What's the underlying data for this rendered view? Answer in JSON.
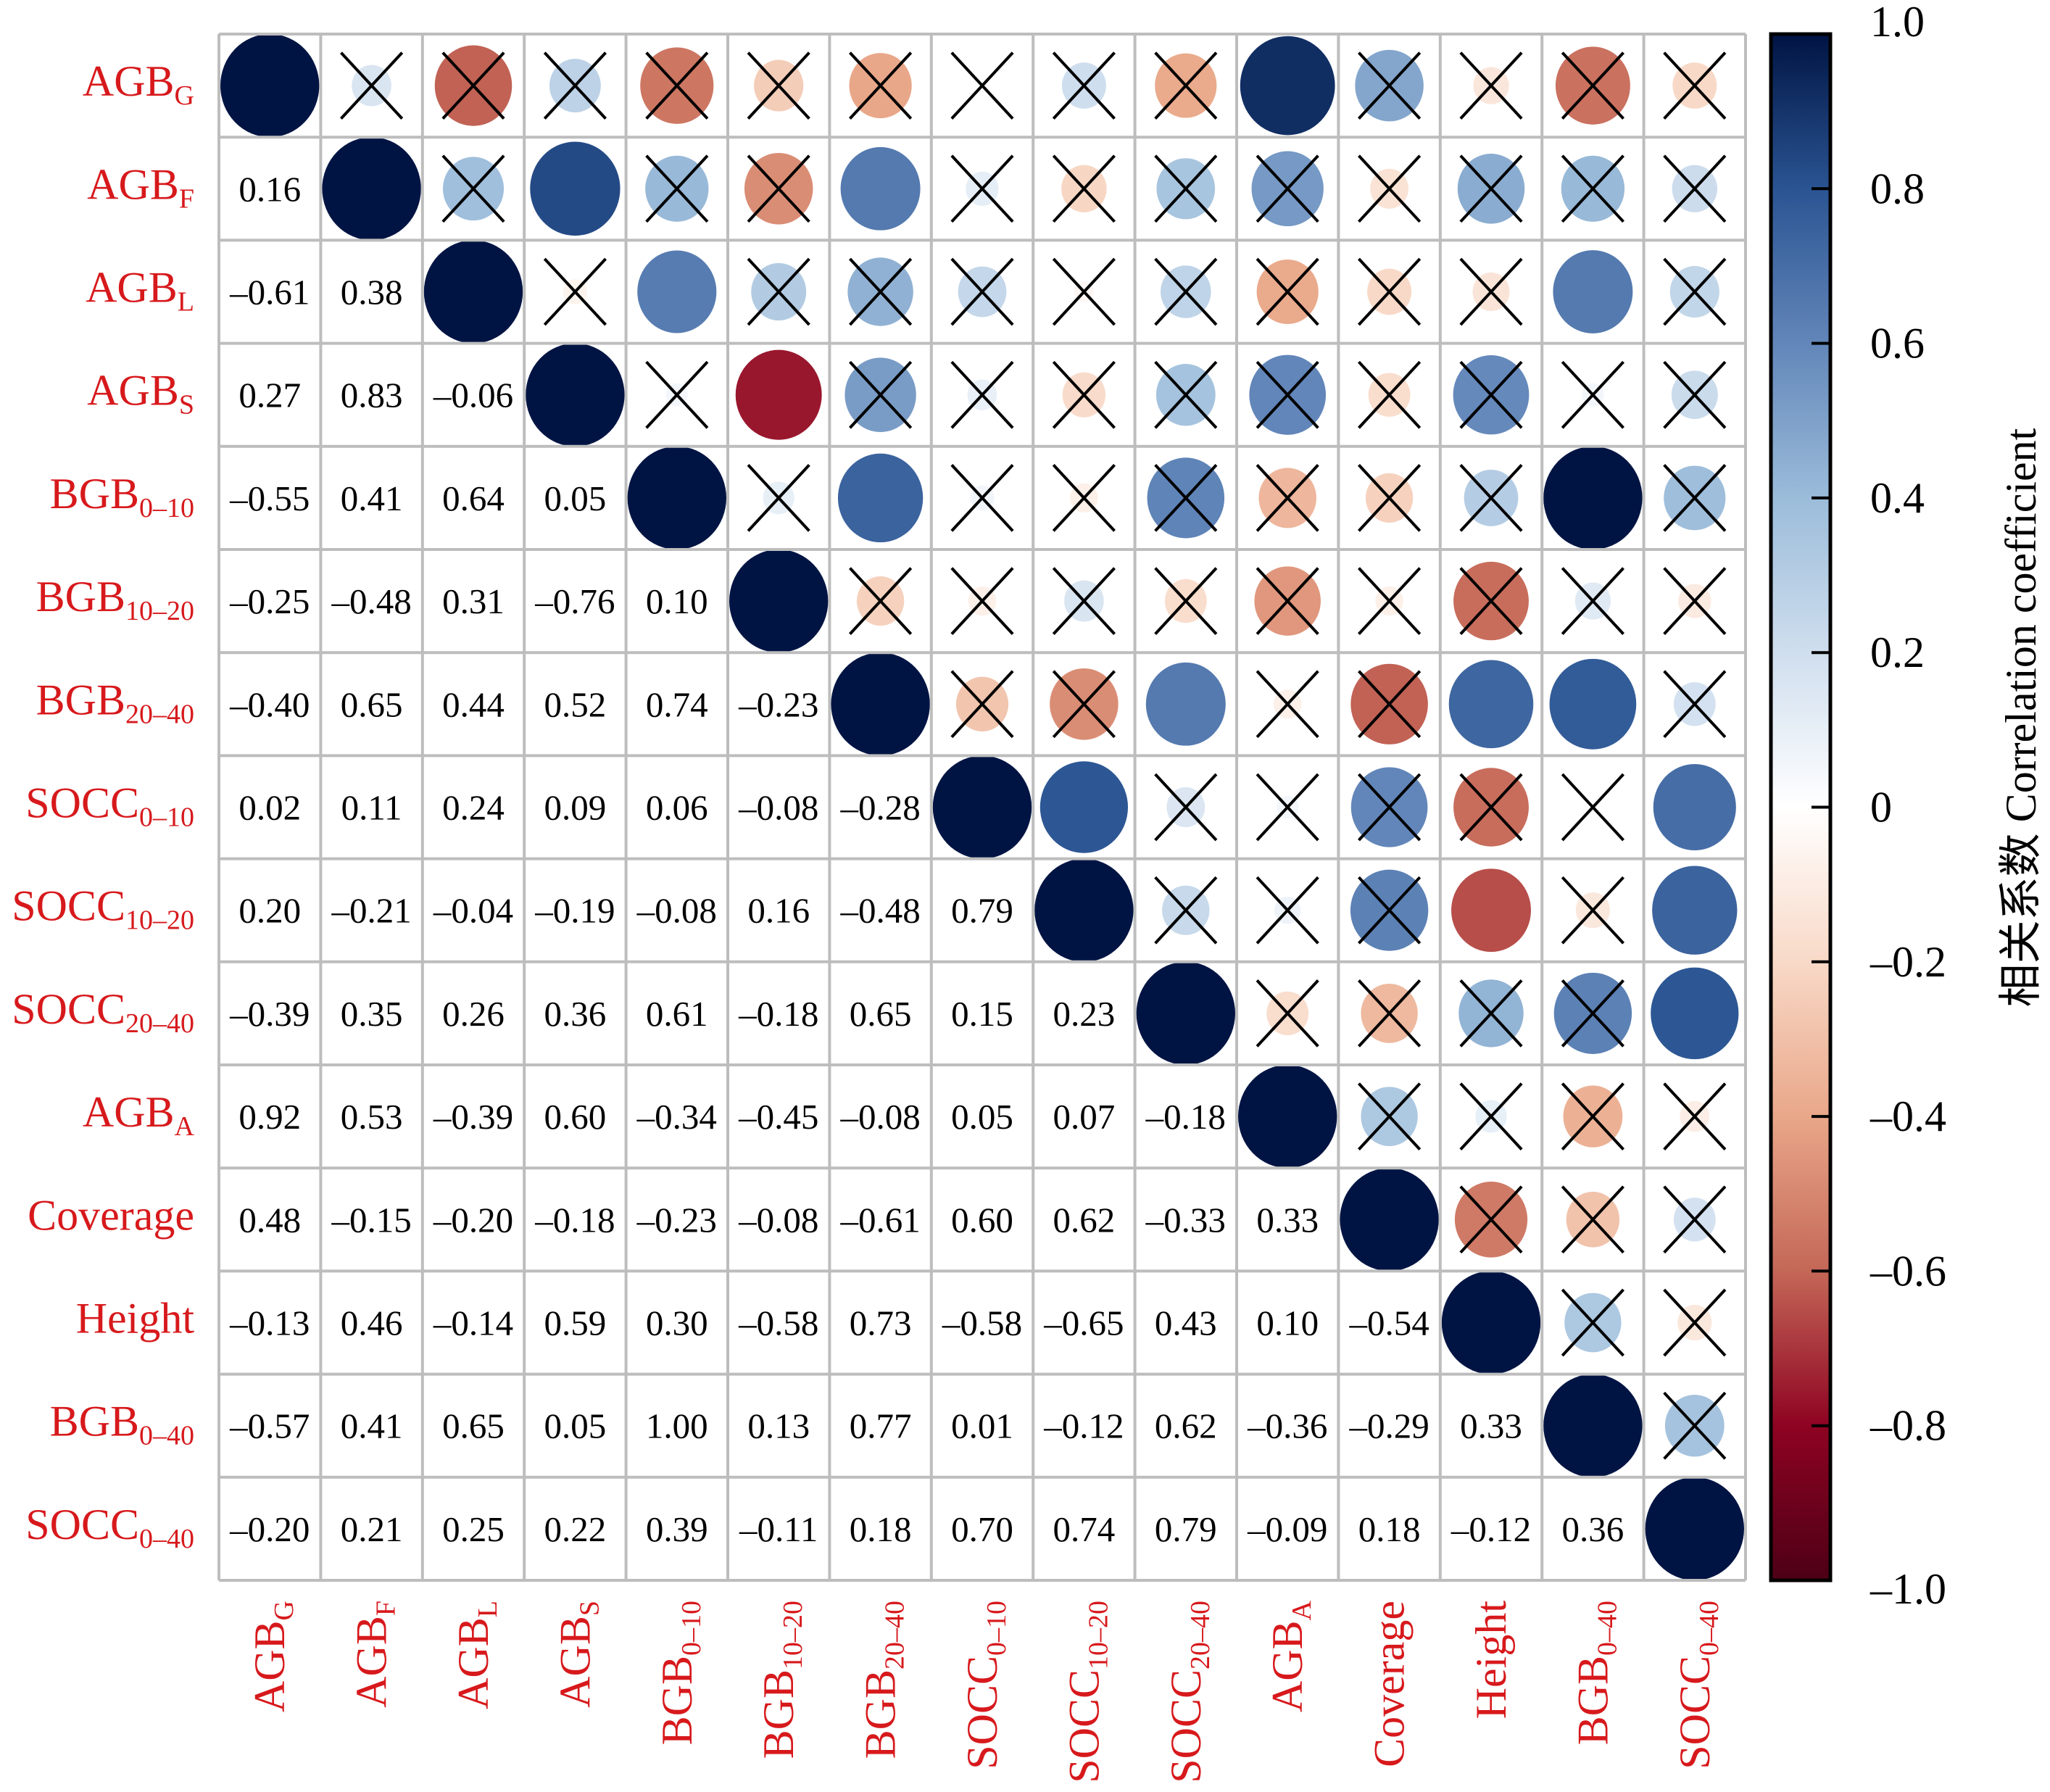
{
  "chart_data": {
    "type": "heatmap",
    "subtype": "correlation-matrix (lower: coefficient values, upper: circles sized/colored by coefficient, X = not significant)",
    "variables": [
      {
        "base": "AGB",
        "sub": "G"
      },
      {
        "base": "AGB",
        "sub": "F"
      },
      {
        "base": "AGB",
        "sub": "L"
      },
      {
        "base": "AGB",
        "sub": "S"
      },
      {
        "base": "BGB",
        "sub": "0–10"
      },
      {
        "base": "BGB",
        "sub": "10–20"
      },
      {
        "base": "BGB",
        "sub": "20–40"
      },
      {
        "base": "SOCC",
        "sub": "0–10"
      },
      {
        "base": "SOCC",
        "sub": "10–20"
      },
      {
        "base": "SOCC",
        "sub": "20–40"
      },
      {
        "base": "AGB",
        "sub": "A"
      },
      {
        "base": "Coverage",
        "sub": ""
      },
      {
        "base": "Height",
        "sub": ""
      },
      {
        "base": "BGB",
        "sub": "0–40"
      },
      {
        "base": "SOCC",
        "sub": "0–40"
      }
    ],
    "lower_triangle": [
      [],
      [
        0.16
      ],
      [
        -0.61,
        0.38
      ],
      [
        0.27,
        0.83,
        -0.06
      ],
      [
        -0.55,
        0.41,
        0.64,
        0.05
      ],
      [
        -0.25,
        -0.48,
        0.31,
        -0.76,
        0.1
      ],
      [
        -0.4,
        0.65,
        0.44,
        0.52,
        0.74,
        -0.23
      ],
      [
        0.02,
        0.11,
        0.24,
        0.09,
        0.06,
        -0.08,
        -0.28
      ],
      [
        0.2,
        -0.21,
        -0.04,
        -0.19,
        -0.08,
        0.16,
        -0.48,
        0.79
      ],
      [
        -0.39,
        0.35,
        0.26,
        0.36,
        0.61,
        -0.18,
        0.65,
        0.15,
        0.23
      ],
      [
        0.92,
        0.53,
        -0.39,
        0.6,
        -0.34,
        -0.45,
        -0.08,
        0.05,
        0.07,
        -0.18
      ],
      [
        0.48,
        -0.15,
        -0.2,
        -0.18,
        -0.23,
        -0.08,
        -0.61,
        0.6,
        0.62,
        -0.33,
        0.33
      ],
      [
        -0.13,
        0.46,
        -0.14,
        0.59,
        0.3,
        -0.58,
        0.73,
        -0.58,
        -0.65,
        0.43,
        0.1,
        -0.54
      ],
      [
        -0.57,
        0.41,
        0.65,
        0.05,
        1.0,
        0.13,
        0.77,
        0.01,
        -0.12,
        0.62,
        -0.36,
        -0.29,
        0.33
      ],
      [
        -0.2,
        0.21,
        0.25,
        0.22,
        0.39,
        -0.11,
        0.18,
        0.7,
        0.74,
        0.79,
        -0.09,
        0.18,
        -0.12,
        0.36
      ]
    ],
    "significant_pairs_upper": [
      [
        0,
        10
      ],
      [
        1,
        3
      ],
      [
        1,
        6
      ],
      [
        2,
        4
      ],
      [
        2,
        13
      ],
      [
        3,
        5
      ],
      [
        4,
        6
      ],
      [
        4,
        13
      ],
      [
        6,
        9
      ],
      [
        6,
        12
      ],
      [
        6,
        13
      ],
      [
        7,
        8
      ],
      [
        7,
        14
      ],
      [
        8,
        12
      ],
      [
        8,
        14
      ],
      [
        9,
        14
      ]
    ],
    "diagonal_value": 1.0,
    "nonsignificant_marker": "X",
    "colorbar": {
      "title": "相关系数 Correlation coefficient",
      "range": [
        -1.0,
        1.0
      ],
      "ticks": [
        1.0,
        0.8,
        0.6,
        0.4,
        0.2,
        0,
        -0.2,
        -0.4,
        -0.6,
        -0.8,
        -1.0
      ],
      "tick_labels": [
        "1.0",
        "0.8",
        "0.6",
        "0.4",
        "0.2",
        "0",
        "–0.2",
        "–0.4",
        "–0.6",
        "–0.8",
        "–1.0"
      ],
      "placement": "right",
      "colors": {
        "-1.0": "#4d0016",
        "-0.8": "#8e0322",
        "-0.6": "#c46757",
        "-0.4": "#e9a789",
        "-0.2": "#f8d9c7",
        "0": "#ffffff",
        "0.2": "#cfdeee",
        "0.4": "#9bbcda",
        "0.6": "#6286b9",
        "0.8": "#2a5492",
        "1.0": "#001443"
      }
    },
    "label_color": "#d7191c",
    "grid_color": "#bdbdbd",
    "number_format": "2 decimals, en-dash minus"
  }
}
